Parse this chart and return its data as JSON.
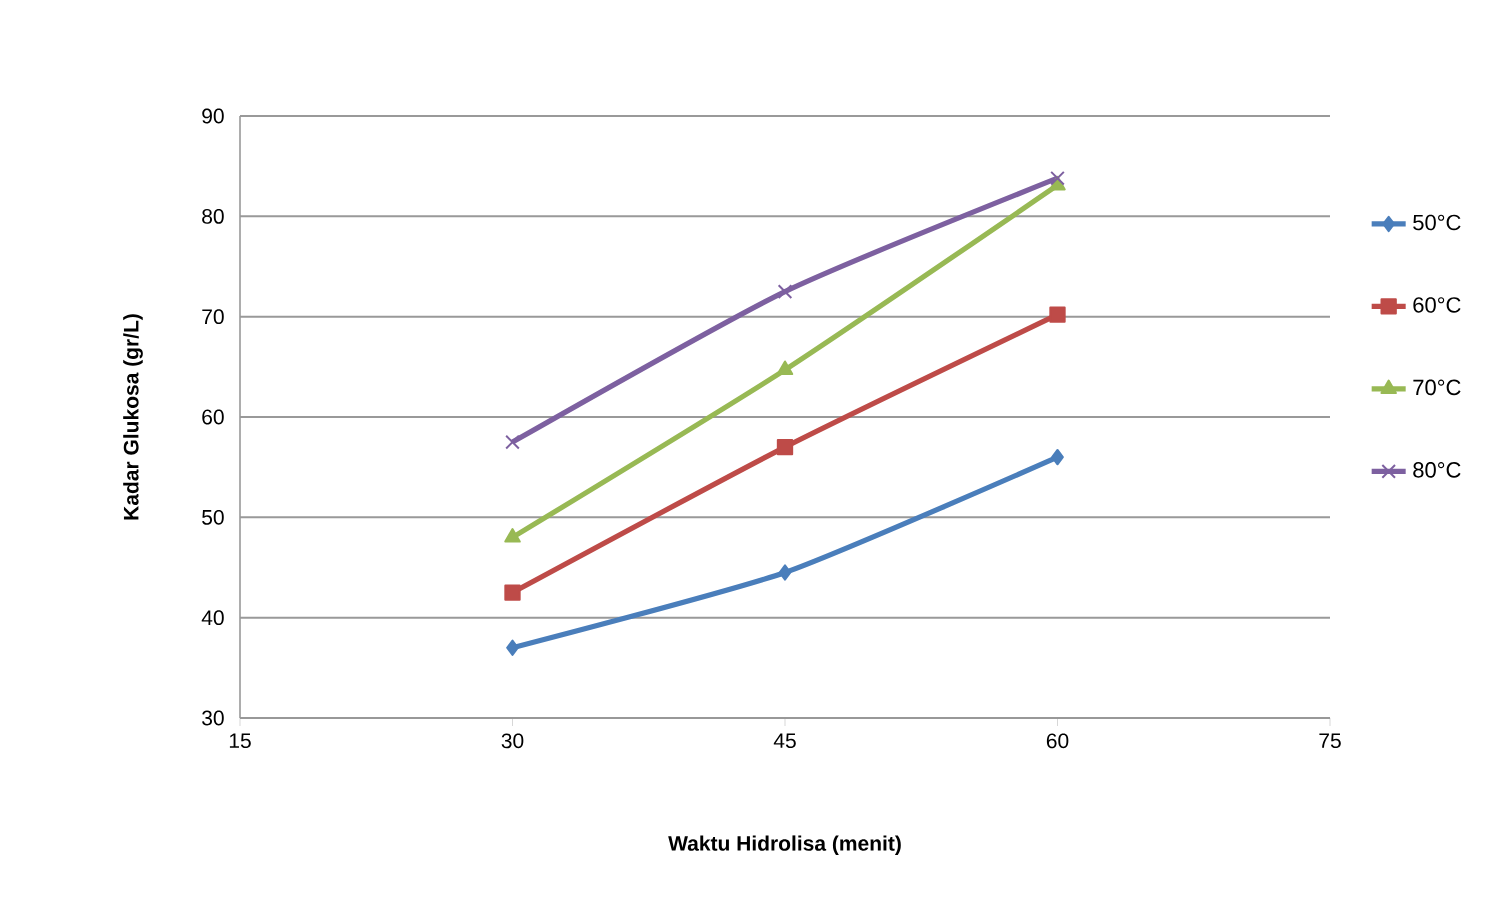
{
  "chart_data": {
    "type": "line",
    "xlabel": "Waktu Hidrolisa (menit)",
    "ylabel": "Kadar Glukosa (gr/L)",
    "x": [
      30,
      45,
      60
    ],
    "series": [
      {
        "name": "50°C",
        "color": "#4a7ebb",
        "marker": "diamond",
        "values": [
          37.0,
          44.5,
          56.0
        ]
      },
      {
        "name": "60°C",
        "color": "#be4b48",
        "marker": "square",
        "values": [
          42.5,
          57.0,
          70.2
        ]
      },
      {
        "name": "70°C",
        "color": "#98b954",
        "marker": "triangle",
        "values": [
          48.0,
          64.7,
          83.1
        ]
      },
      {
        "name": "80°C",
        "color": "#7d60a0",
        "marker": "cross",
        "values": [
          57.5,
          72.5,
          83.8
        ]
      }
    ],
    "xlim": [
      15,
      75
    ],
    "xticks": [
      15,
      30,
      45,
      60,
      75
    ],
    "ylim": [
      30,
      90
    ],
    "yticks": [
      30,
      40,
      50,
      60,
      70,
      80,
      90
    ],
    "grid": "y",
    "legend": "right",
    "line_style": "solid"
  }
}
